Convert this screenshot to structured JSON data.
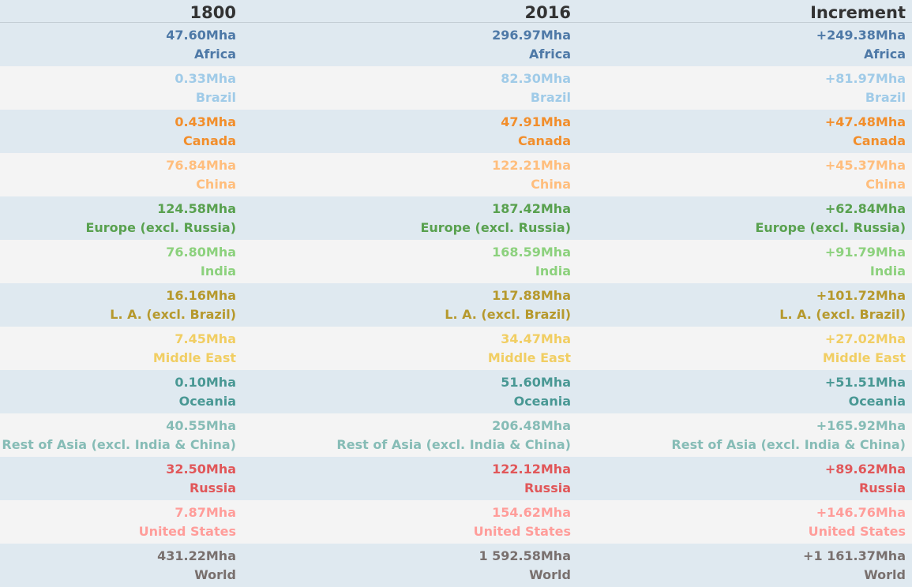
{
  "chart_data": {
    "type": "table",
    "columns": [
      "1800",
      "2016",
      "Increment"
    ],
    "unit": "Mha",
    "rows": [
      {
        "region": "Africa",
        "color": "#4e79a7",
        "v1800": "47.60Mha",
        "v2016": "296.97Mha",
        "increment": "+249.38Mha"
      },
      {
        "region": "Brazil",
        "color": "#a0cbe8",
        "v1800": "0.33Mha",
        "v2016": "82.30Mha",
        "increment": "+81.97Mha"
      },
      {
        "region": "Canada",
        "color": "#f28e2b",
        "v1800": "0.43Mha",
        "v2016": "47.91Mha",
        "increment": "+47.48Mha"
      },
      {
        "region": "China",
        "color": "#ffbe7d",
        "v1800": "76.84Mha",
        "v2016": "122.21Mha",
        "increment": "+45.37Mha"
      },
      {
        "region": "Europe (excl. Russia)",
        "color": "#59a14f",
        "v1800": "124.58Mha",
        "v2016": "187.42Mha",
        "increment": "+62.84Mha"
      },
      {
        "region": "India",
        "color": "#8cd17d",
        "v1800": "76.80Mha",
        "v2016": "168.59Mha",
        "increment": "+91.79Mha"
      },
      {
        "region": "L. A. (excl. Brazil)",
        "color": "#b6992d",
        "v1800": "16.16Mha",
        "v2016": "117.88Mha",
        "increment": "+101.72Mha"
      },
      {
        "region": "Middle East",
        "color": "#f1ce63",
        "v1800": "7.45Mha",
        "v2016": "34.47Mha",
        "increment": "+27.02Mha"
      },
      {
        "region": "Oceania",
        "color": "#499894",
        "v1800": "0.10Mha",
        "v2016": "51.60Mha",
        "increment": "+51.51Mha"
      },
      {
        "region": "Rest of Asia (excl. India & China)",
        "color": "#86bcb6",
        "v1800": "40.55Mha",
        "v2016": "206.48Mha",
        "increment": "+165.92Mha"
      },
      {
        "region": "Russia",
        "color": "#e15759",
        "v1800": "32.50Mha",
        "v2016": "122.12Mha",
        "increment": "+89.62Mha"
      },
      {
        "region": "United States",
        "color": "#ff9d9a",
        "v1800": "7.87Mha",
        "v2016": "154.62Mha",
        "increment": "+146.76Mha"
      },
      {
        "region": "World",
        "color": "#79706e",
        "v1800": "431.22Mha",
        "v2016": "1 592.58Mha",
        "increment": "+1 161.37Mha"
      }
    ]
  }
}
